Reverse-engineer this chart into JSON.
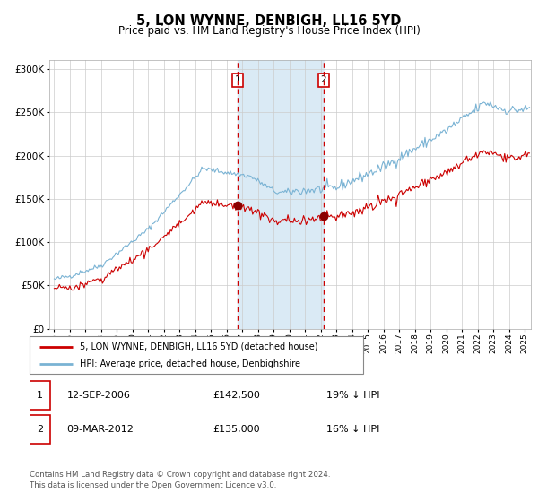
{
  "title": "5, LON WYNNE, DENBIGH, LL16 5YD",
  "subtitle": "Price paid vs. HM Land Registry's House Price Index (HPI)",
  "hpi_color": "#7ab3d4",
  "price_color": "#cc0000",
  "sale1_date_label": "12-SEP-2006",
  "sale1_price": 142500,
  "sale1_pct": "19%",
  "sale2_date_label": "09-MAR-2012",
  "sale2_price": 135000,
  "sale2_pct": "16%",
  "legend1": "5, LON WYNNE, DENBIGH, LL16 5YD (detached house)",
  "legend2": "HPI: Average price, detached house, Denbighshire",
  "footnote": "Contains HM Land Registry data © Crown copyright and database right 2024.\nThis data is licensed under the Open Government Licence v3.0.",
  "ylim": [
    0,
    310000
  ],
  "shade_color": "#daeaf5",
  "vline_color": "#cc0000",
  "marker_color": "#8b0000",
  "sale1_x": 2006.71,
  "sale2_x": 2012.17,
  "shade_x1": 2006.71,
  "shade_x2": 2012.17,
  "xmin": 1994.7,
  "xmax": 2025.4
}
